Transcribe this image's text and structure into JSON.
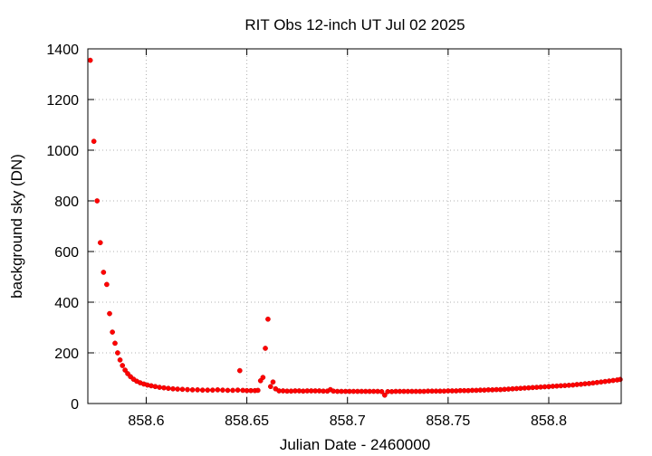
{
  "chart_data": {
    "type": "scatter",
    "title": "RIT Obs 12-inch UT Jul 02 2025",
    "xlabel": "Julian Date - 2460000",
    "ylabel": "background sky (DN)",
    "xlim": [
      858.571,
      858.836
    ],
    "ylim": [
      0,
      1400
    ],
    "xticks": [
      "858.6",
      "858.65",
      "858.7",
      "858.75",
      "858.8"
    ],
    "xtick_values": [
      858.6,
      858.65,
      858.7,
      858.75,
      858.8
    ],
    "yticks": [
      "0",
      "200",
      "400",
      "600",
      "800",
      "1000",
      "1200",
      "1400"
    ],
    "ytick_values": [
      0,
      200,
      400,
      600,
      800,
      1000,
      1200,
      1400
    ],
    "grid": true,
    "marker_color": "#ff0000",
    "points": [
      [
        858.5722,
        1355
      ],
      [
        858.574,
        1035
      ],
      [
        858.5756,
        800
      ],
      [
        858.5772,
        635
      ],
      [
        858.5788,
        518
      ],
      [
        858.5804,
        470
      ],
      [
        858.5818,
        355
      ],
      [
        858.5832,
        282
      ],
      [
        858.5845,
        238
      ],
      [
        858.5858,
        200
      ],
      [
        858.587,
        172
      ],
      [
        858.5882,
        150
      ],
      [
        858.5895,
        132
      ],
      [
        858.5908,
        118
      ],
      [
        858.5922,
        106
      ],
      [
        858.5937,
        96
      ],
      [
        858.5953,
        88
      ],
      [
        858.597,
        82
      ],
      [
        858.5988,
        77
      ],
      [
        858.6006,
        73
      ],
      [
        858.6025,
        70
      ],
      [
        858.6045,
        67
      ],
      [
        858.6066,
        64
      ],
      [
        858.6088,
        62
      ],
      [
        858.611,
        60
      ],
      [
        858.6133,
        58
      ],
      [
        858.6156,
        57
      ],
      [
        858.618,
        56
      ],
      [
        858.6205,
        55
      ],
      [
        858.623,
        54
      ],
      [
        858.6255,
        54
      ],
      [
        858.628,
        53
      ],
      [
        858.6305,
        53
      ],
      [
        858.633,
        53
      ],
      [
        858.6355,
        54
      ],
      [
        858.638,
        53
      ],
      [
        858.6405,
        52
      ],
      [
        858.643,
        52
      ],
      [
        858.6455,
        53
      ],
      [
        858.6465,
        130
      ],
      [
        858.648,
        52
      ],
      [
        858.65,
        51
      ],
      [
        858.652,
        51
      ],
      [
        858.654,
        51
      ],
      [
        858.6555,
        52
      ],
      [
        858.6568,
        90
      ],
      [
        858.658,
        103
      ],
      [
        858.6592,
        218
      ],
      [
        858.6605,
        333
      ],
      [
        858.6618,
        67
      ],
      [
        858.663,
        85
      ],
      [
        858.6643,
        58
      ],
      [
        858.666,
        50
      ],
      [
        858.668,
        50
      ],
      [
        858.67,
        49
      ],
      [
        858.672,
        49
      ],
      [
        858.674,
        50
      ],
      [
        858.676,
        50
      ],
      [
        858.678,
        49
      ],
      [
        858.68,
        50
      ],
      [
        858.682,
        50
      ],
      [
        858.684,
        50
      ],
      [
        858.686,
        50
      ],
      [
        858.688,
        49
      ],
      [
        858.69,
        49
      ],
      [
        858.6915,
        55
      ],
      [
        858.693,
        49
      ],
      [
        858.695,
        48
      ],
      [
        858.697,
        48
      ],
      [
        858.699,
        48
      ],
      [
        858.701,
        48
      ],
      [
        858.703,
        48
      ],
      [
        858.705,
        48
      ],
      [
        858.707,
        48
      ],
      [
        858.709,
        48
      ],
      [
        858.711,
        48
      ],
      [
        858.713,
        48
      ],
      [
        858.715,
        48
      ],
      [
        858.717,
        47
      ],
      [
        858.7185,
        33
      ],
      [
        858.72,
        47
      ],
      [
        858.722,
        47
      ],
      [
        858.724,
        48
      ],
      [
        858.726,
        48
      ],
      [
        858.728,
        48
      ],
      [
        858.73,
        48
      ],
      [
        858.732,
        48
      ],
      [
        858.734,
        48
      ],
      [
        858.736,
        48
      ],
      [
        858.738,
        48
      ],
      [
        858.74,
        49
      ],
      [
        858.742,
        49
      ],
      [
        858.744,
        49
      ],
      [
        858.746,
        49
      ],
      [
        858.748,
        49
      ],
      [
        858.75,
        50
      ],
      [
        858.752,
        50
      ],
      [
        858.754,
        50
      ],
      [
        858.756,
        51
      ],
      [
        858.758,
        51
      ],
      [
        858.76,
        51
      ],
      [
        858.762,
        52
      ],
      [
        858.764,
        52
      ],
      [
        858.766,
        53
      ],
      [
        858.768,
        53
      ],
      [
        858.77,
        54
      ],
      [
        858.772,
        54
      ],
      [
        858.774,
        55
      ],
      [
        858.776,
        55
      ],
      [
        858.778,
        56
      ],
      [
        858.78,
        57
      ],
      [
        858.782,
        58
      ],
      [
        858.784,
        59
      ],
      [
        858.786,
        60
      ],
      [
        858.788,
        61
      ],
      [
        858.79,
        62
      ],
      [
        858.792,
        63
      ],
      [
        858.794,
        64
      ],
      [
        858.796,
        65
      ],
      [
        858.798,
        66
      ],
      [
        858.8,
        67
      ],
      [
        858.802,
        68
      ],
      [
        858.804,
        69
      ],
      [
        858.806,
        70
      ],
      [
        858.808,
        71
      ],
      [
        858.81,
        72
      ],
      [
        858.812,
        73
      ],
      [
        858.814,
        75
      ],
      [
        858.816,
        76
      ],
      [
        858.818,
        78
      ],
      [
        858.82,
        79
      ],
      [
        858.822,
        81
      ],
      [
        858.824,
        83
      ],
      [
        858.826,
        85
      ],
      [
        858.828,
        87
      ],
      [
        858.83,
        89
      ],
      [
        858.832,
        91
      ],
      [
        858.834,
        93
      ],
      [
        858.8355,
        95
      ]
    ]
  }
}
